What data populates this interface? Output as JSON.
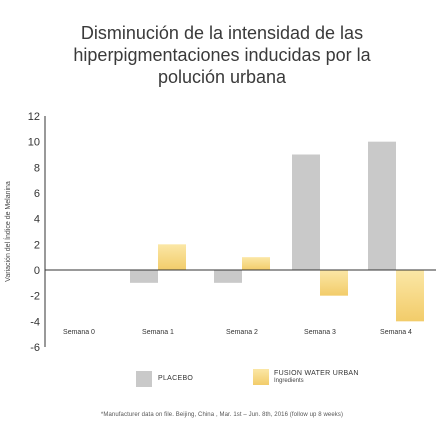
{
  "chart_data": {
    "type": "bar",
    "title_lines": [
      "Disminución de la intensidad de las",
      "hiperpigmentaciones inducidas por la",
      "polución urbana"
    ],
    "xlabel": "",
    "ylabel": "Variación del Índice de Melanina",
    "categories": [
      "Semana 0",
      "Semana 1",
      "Semana 2",
      "Semana 3",
      "Semana 4"
    ],
    "series": [
      {
        "name": "PLACEBO",
        "values": [
          0,
          -1,
          -1,
          9,
          10
        ],
        "color": "#c9c9c9"
      },
      {
        "name": "FUSION WATER URBAN",
        "subname": "Ingredients",
        "values": [
          0,
          2,
          1,
          -2,
          -4
        ],
        "color_top": "#fbe7a6",
        "color_bottom": "#f2cc6a"
      }
    ],
    "ylim": [
      -6,
      12
    ],
    "yticks": [
      12,
      10,
      8,
      6,
      4,
      2,
      0,
      -2,
      -4,
      -6
    ],
    "grid": false,
    "legend_position": "bottom-center"
  },
  "footnote": "*Manufacturer data on file. Beijing, China , Mar. 1st – Jun. 8th, 2016 (follow up 8 weeks)"
}
